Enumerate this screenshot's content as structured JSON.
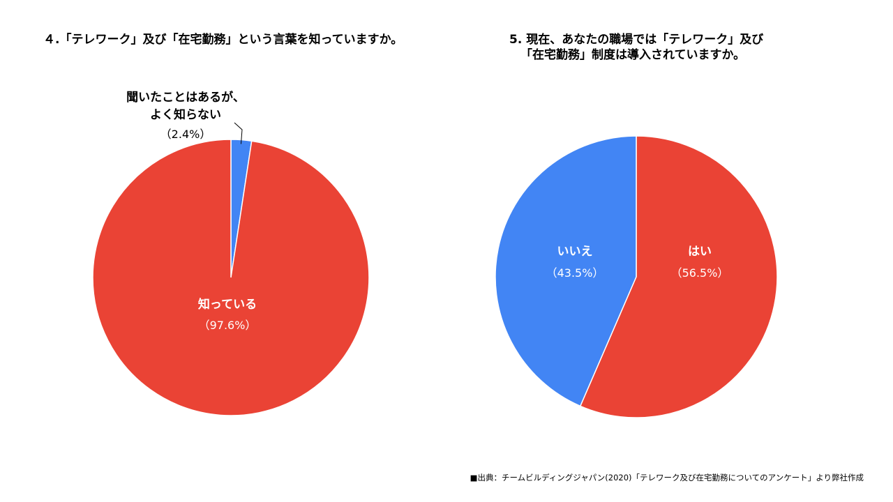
{
  "source_note": "■出典：チームビルディングジャパン(2020)「テレワーク及び在宅勤務についてのアンケート」より弊社作成",
  "chart_data": [
    {
      "type": "pie",
      "title": "４.「テレワーク」及び「在宅勤務」という言葉を知っていますか。",
      "slices": [
        {
          "name_lines": [
            "聞いたことはあるが、",
            "よく知らない"
          ],
          "percent_label": "（2.4%）",
          "value": 2.4,
          "color": "#4285f4"
        },
        {
          "name_lines": [
            "知っている"
          ],
          "percent_label": "（97.6%）",
          "value": 97.6,
          "color": "#ea4335"
        }
      ]
    },
    {
      "type": "pie",
      "title_lines": [
        "5. 現在、あなたの職場では「テレワーク」及び",
        "「在宅勤務」制度は導入されていますか。"
      ],
      "slices": [
        {
          "name_lines": [
            "はい"
          ],
          "percent_label": "（56.5%）",
          "value": 56.5,
          "color": "#ea4335"
        },
        {
          "name_lines": [
            "いいえ"
          ],
          "percent_label": "（43.5%）",
          "value": 43.5,
          "color": "#4285f4"
        }
      ]
    }
  ]
}
